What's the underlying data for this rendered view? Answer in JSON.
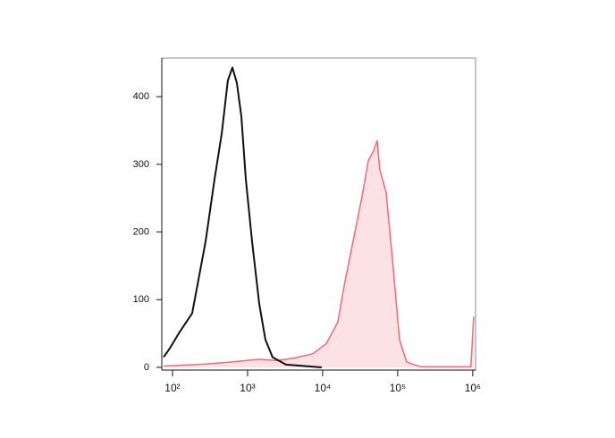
{
  "chart_data": {
    "type": "line",
    "xscale": "log",
    "xlim": [
      72,
      1090000
    ],
    "ylim": [
      -4,
      457
    ],
    "xticks": [
      {
        "value": 100,
        "label": "10²"
      },
      {
        "value": 1000,
        "label": "10³"
      },
      {
        "value": 10000,
        "label": "10⁴"
      },
      {
        "value": 100000,
        "label": "10⁵"
      },
      {
        "value": 1000000,
        "label": "10⁶"
      }
    ],
    "yticks": [
      0,
      100,
      200,
      300,
      400
    ],
    "series": [
      {
        "color": "#111111",
        "x": [
          76,
          92,
          121,
          183,
          276,
          363,
          452,
          547,
          628,
          720,
          826,
          947,
          1148,
          1429,
          1730,
          2154,
          3250,
          9730
        ],
        "values": [
          15,
          28,
          50,
          80,
          186,
          278,
          345,
          424,
          443,
          420,
          371,
          278,
          186,
          94,
          41,
          15,
          4,
          0
        ]
      },
      {
        "color": "#f06a78",
        "fill": "#fde2e5",
        "x": [
          76,
          276,
          628,
          1429,
          2472,
          4276,
          7396,
          11170,
          15920,
          19320,
          25410,
          33420,
          40460,
          47740,
          53240,
          57810,
          70000,
          87100,
          105600,
          131500,
          198500,
          946000,
          1028000
        ],
        "values": [
          2,
          5,
          8,
          12,
          10,
          14,
          20,
          35,
          67,
          120,
          186,
          252,
          305,
          320,
          335,
          292,
          259,
          147,
          41,
          8,
          1,
          1,
          75
        ]
      }
    ]
  }
}
